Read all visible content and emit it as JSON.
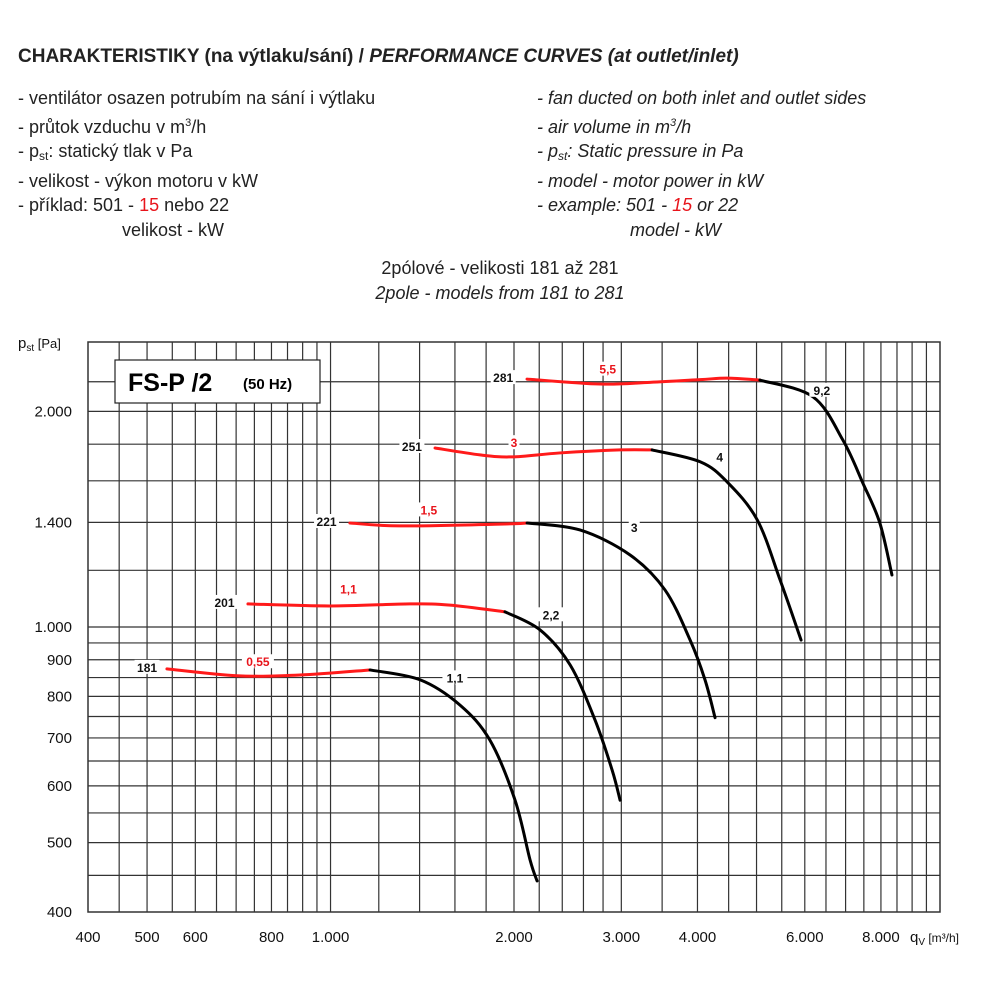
{
  "header": {
    "title_cz": "CHARAKTERISTIKY (na výtlaku/sání) / ",
    "title_en": "PERFORMANCE CURVES (at outlet/inlet)",
    "left_lines": [
      "-  ventilátor osazen potrubím na sání i výtlaku",
      "-  průtok vzduchu v m",
      "-  p",
      "-  velikost - výkon motoru v kW",
      "-  příklad:    501 - ",
      "velikost - kW"
    ],
    "left_sup": "3",
    "left_suffix_flow": "/h",
    "left_sub": "st",
    "left_pst_text": ": statický tlak v Pa",
    "left_example_red": "15",
    "left_example_tail": " nebo 22",
    "right_lines": [
      "-  fan ducted on both inlet and outlet sides",
      "-  air volume in m",
      "-  p",
      "-  model - motor power in kW",
      "-  example:  501 - ",
      "model - kW"
    ],
    "right_sup": "3",
    "right_suffix_flow": "/h",
    "right_sub": "st",
    "right_pst_text": ": Static pressure in Pa",
    "right_example_red": "15",
    "right_example_tail": " or 22"
  },
  "chart_heading": {
    "line1": "2pólové - velikosti 181 až 281",
    "line2": "2pole - models from 181 to 281"
  },
  "chart_data": {
    "type": "line",
    "title": "FS-P /2",
    "title_suffix": "(50 Hz)",
    "xlabel": "q",
    "xlabel_sub": "V",
    "xlabel_unit": " [m³/h]",
    "ylabel": "p",
    "ylabel_sub": "st",
    "ylabel_unit": " [Pa]",
    "xscale": "log",
    "yscale": "log",
    "xlim": [
      400,
      10000
    ],
    "ylim": [
      400,
      2500
    ],
    "grid": true,
    "xticks": [
      400,
      500,
      600,
      800,
      1000,
      2000,
      3000,
      4000,
      6000,
      8000
    ],
    "xtick_labels": [
      "400",
      "500",
      "600",
      "800",
      "1.000",
      "2.000",
      "3.000",
      "4.000",
      "6.000",
      "8.000"
    ],
    "yticks": [
      400,
      500,
      600,
      700,
      800,
      900,
      1000,
      1400,
      2000
    ],
    "ytick_labels": [
      "400",
      "500",
      "600",
      "700",
      "800",
      "900",
      "1.000",
      "1.400",
      "2.000"
    ],
    "colors": {
      "small_motor": "#ff1a1a",
      "large_motor": "#000000"
    },
    "series": [
      {
        "name": "181",
        "small_kw": "0,55",
        "large_kw": "1,1",
        "red": [
          [
            539,
            874
          ],
          [
            702,
            855
          ],
          [
            891,
            857
          ],
          [
            1161,
            871
          ]
        ],
        "black": [
          [
            1161,
            871
          ],
          [
            1402,
            844
          ],
          [
            1631,
            778
          ],
          [
            1826,
            695
          ],
          [
            2008,
            573
          ],
          [
            2125,
            473
          ],
          [
            2182,
            442
          ]
        ],
        "label_at": [
          500,
          874
        ],
        "small_label_at": [
          760,
          890
        ],
        "large_label_at": [
          1600,
          845
        ]
      },
      {
        "name": "201",
        "small_kw": "1,1",
        "large_kw": "2,2",
        "red": [
          [
            732,
            1077
          ],
          [
            997,
            1070
          ],
          [
            1350,
            1077
          ],
          [
            1571,
            1073
          ],
          [
            1933,
            1050
          ]
        ],
        "black": [
          [
            1933,
            1050
          ],
          [
            2206,
            991
          ],
          [
            2473,
            885
          ],
          [
            2717,
            741
          ],
          [
            2898,
            631
          ],
          [
            2986,
            573
          ]
        ],
        "label_at": [
          670,
          1077
        ],
        "small_label_at": [
          1070,
          1125
        ],
        "large_label_at": [
          2300,
          1035
        ]
      },
      {
        "name": "221",
        "small_kw": "1,5",
        "large_kw": "3",
        "red": [
          [
            1076,
            1397
          ],
          [
            1300,
            1384
          ],
          [
            1897,
            1392
          ],
          [
            2101,
            1397
          ]
        ],
        "black": [
          [
            2101,
            1397
          ],
          [
            2566,
            1366
          ],
          [
            3099,
            1261
          ],
          [
            3537,
            1127
          ],
          [
            3890,
            959
          ],
          [
            4115,
            844
          ],
          [
            4275,
            747
          ]
        ],
        "label_at": [
          985,
          1397
        ],
        "small_label_at": [
          1450,
          1450
        ],
        "large_label_at": [
          3150,
          1370
        ]
      },
      {
        "name": "251",
        "small_kw": "3",
        "large_kw": "4",
        "red": [
          [
            1484,
            1778
          ],
          [
            1759,
            1739
          ],
          [
            1985,
            1728
          ],
          [
            2378,
            1750
          ],
          [
            2985,
            1767
          ],
          [
            3370,
            1767
          ]
        ],
        "black": [
          [
            3370,
            1767
          ],
          [
            4040,
            1701
          ],
          [
            4475,
            1594
          ],
          [
            5014,
            1411
          ],
          [
            5466,
            1163
          ],
          [
            5916,
            959
          ]
        ],
        "label_at": [
          1360,
          1778
        ],
        "small_label_at": [
          2000,
          1800
        ],
        "large_label_at": [
          4350,
          1720
        ]
      },
      {
        "name": "281",
        "small_kw": "5,5",
        "large_kw": "9,2",
        "red": [
          [
            2101,
            2219
          ],
          [
            2768,
            2184
          ],
          [
            3342,
            2196
          ],
          [
            4040,
            2215
          ],
          [
            4475,
            2226
          ],
          [
            5064,
            2212
          ]
        ],
        "black": [
          [
            5064,
            2212
          ],
          [
            6188,
            2096
          ],
          [
            6928,
            1824
          ],
          [
            7471,
            1589
          ],
          [
            7967,
            1397
          ],
          [
            8340,
            1182
          ]
        ],
        "label_at": [
          1920,
          2219
        ],
        "small_label_at": [
          2850,
          2280
        ],
        "large_label_at": [
          6400,
          2130
        ]
      }
    ]
  }
}
